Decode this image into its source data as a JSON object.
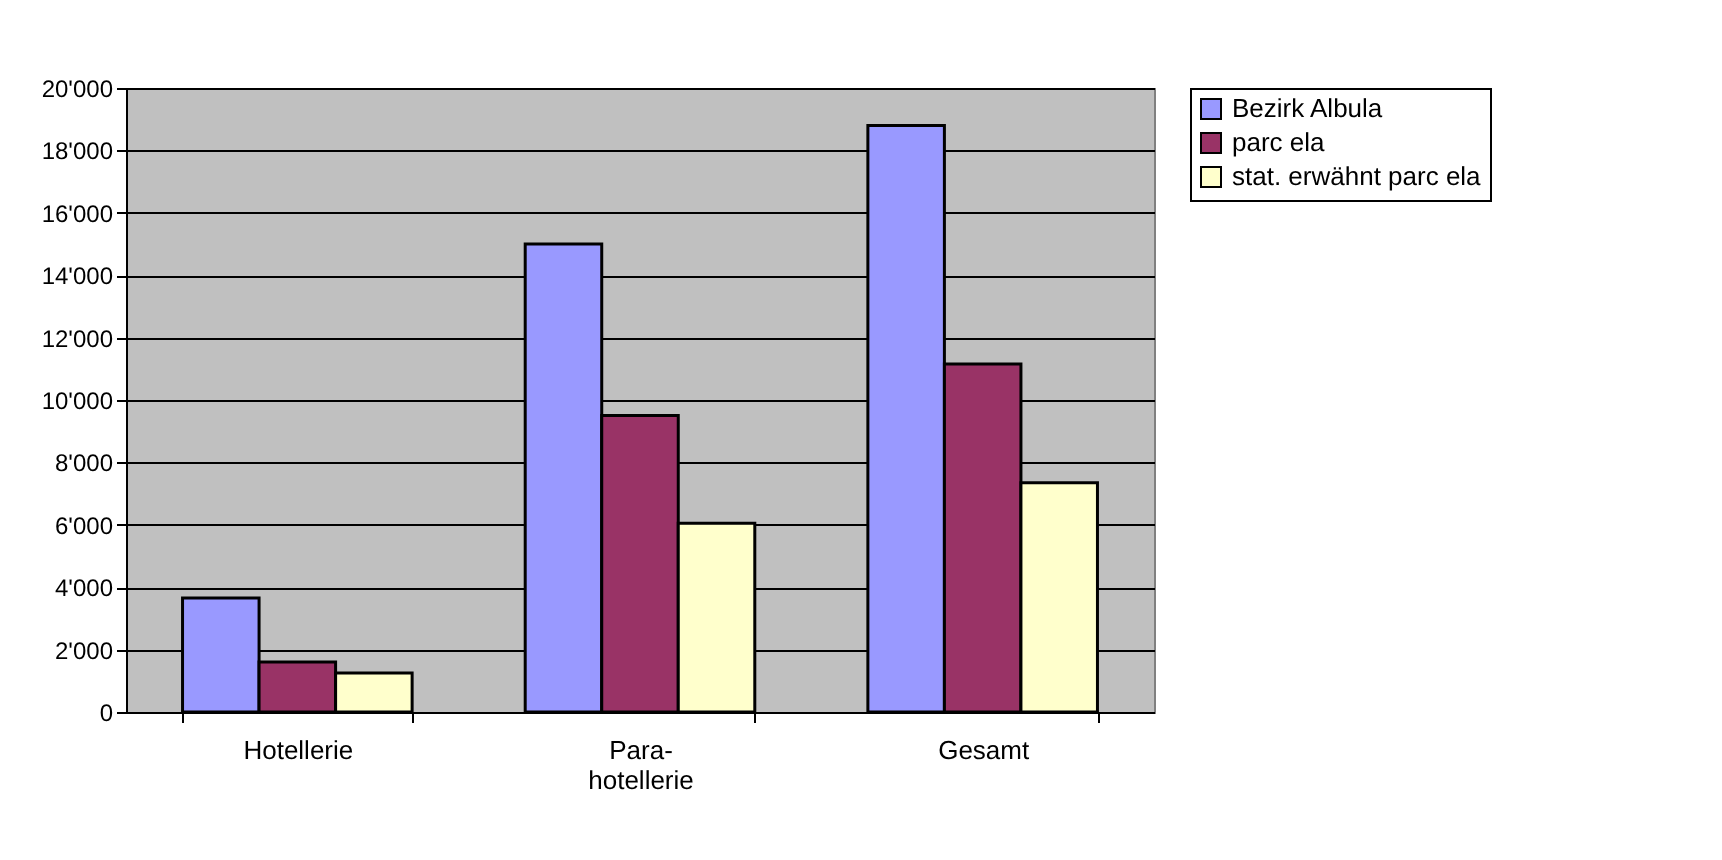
{
  "chart_data": {
    "type": "bar",
    "categories": [
      "Hotellerie",
      "Para-\nhotellerie",
      "Gesamt"
    ],
    "series": [
      {
        "name": "Bezirk Albula",
        "color": "#9999ff",
        "values": [
          3650,
          15000,
          18800
        ]
      },
      {
        "name": "parc ela",
        "color": "#993366",
        "values": [
          1600,
          9500,
          11150
        ]
      },
      {
        "name": "stat. erwähnt parc ela",
        "color": "#ffffcc",
        "values": [
          1250,
          6050,
          7350
        ]
      }
    ],
    "ylim": [
      0,
      20000
    ],
    "yticks": [
      0,
      {
        "value": 2000,
        "label": "2'000"
      },
      {
        "value": 4000,
        "label": "4'000"
      },
      {
        "value": 6000,
        "label": "6'000"
      },
      {
        "value": 8000,
        "label": "8'000"
      },
      {
        "value": 10000,
        "label": "10'000"
      },
      {
        "value": 12000,
        "label": "12'000"
      },
      {
        "value": 14000,
        "label": "14'000"
      },
      {
        "value": 16000,
        "label": "16'000"
      },
      {
        "value": 18000,
        "label": "18'000"
      },
      {
        "value": 20000,
        "label": "20'000"
      }
    ],
    "grid": "y",
    "legend": "right"
  }
}
